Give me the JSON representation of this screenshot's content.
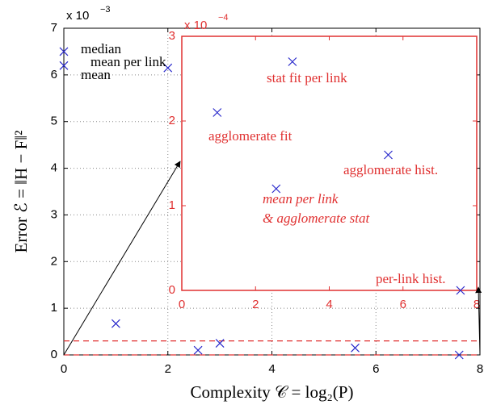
{
  "chart_data": [
    {
      "type": "scatter",
      "xlabel": "Complexity 𝒞 = log₂(P)",
      "ylabel": "Error ℰ = ‖H − F‖²",
      "multiplier": {
        "base": "x 10",
        "exponent": "−3"
      },
      "x": [
        0,
        0,
        2,
        1,
        2.58,
        3,
        5.6,
        7.6
      ],
      "y": [
        6.5,
        6.2,
        6.15,
        0.67,
        0.1,
        0.25,
        0.15,
        0
      ],
      "marker_color": "#2a2acc",
      "axis_color": "#000000",
      "xlim": [
        0,
        8
      ],
      "ylim": [
        0,
        7
      ],
      "xticks": [
        0,
        2,
        4,
        6,
        8
      ],
      "yticks": [
        0,
        1,
        2,
        3,
        4,
        5,
        6,
        7
      ],
      "grid": true,
      "reference_lines": [
        0.3,
        0
      ],
      "reference_color": "#e03030",
      "annotations": [
        "median",
        "mean",
        "mean per link"
      ]
    },
    {
      "type": "scatter",
      "multiplier": {
        "base": "x 10",
        "exponent": "−4"
      },
      "x": [
        0.96,
        2.56,
        3.0,
        5.6,
        7.56
      ],
      "y": [
        2.1,
        1.2,
        2.7,
        1.6,
        0
      ],
      "marker_color": "#2a2acc",
      "axis_color": "#e03030",
      "xlim": [
        0,
        8
      ],
      "ylim": [
        0,
        3
      ],
      "xticks": [
        0,
        2,
        4,
        6,
        8
      ],
      "yticks": [
        0,
        1,
        2,
        3
      ],
      "grid": false,
      "annotations": [
        "agglomerate fit",
        "mean per link",
        "& agglomerate stat",
        "stat fit per link",
        "agglomerate hist.",
        "per-link hist."
      ]
    }
  ]
}
